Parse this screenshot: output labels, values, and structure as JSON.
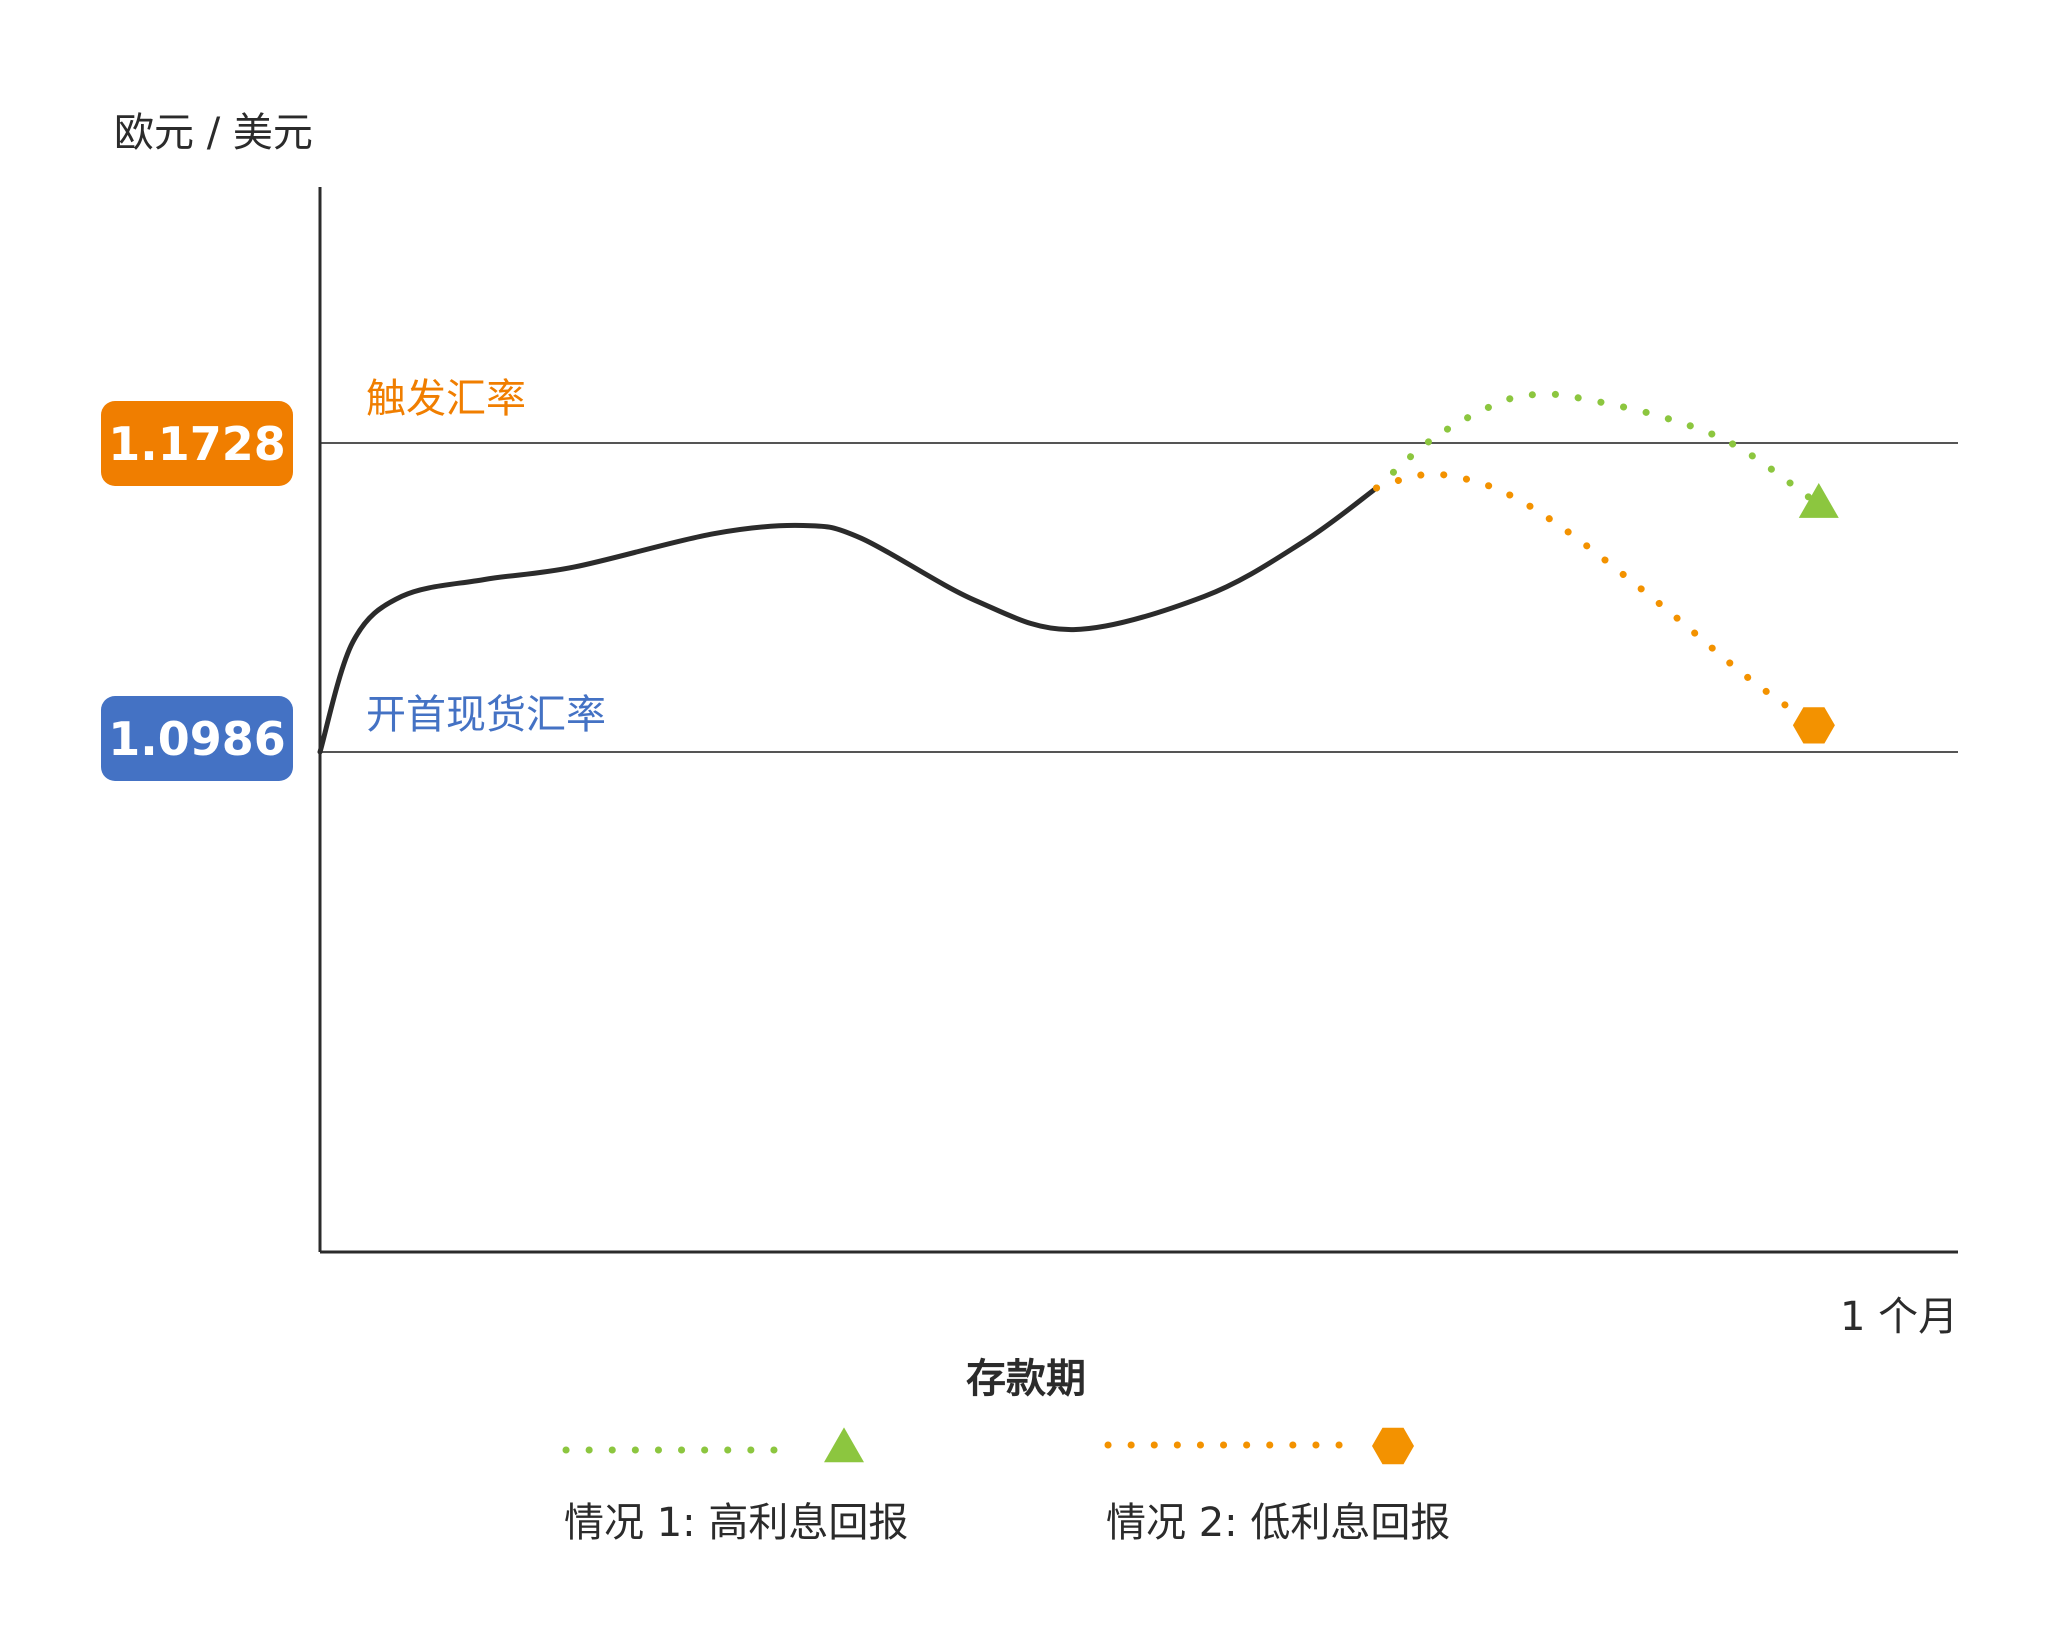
{
  "chart_data": {
    "type": "line",
    "y_axis_title": "欧元 / 美元",
    "x_axis_title": "存款期",
    "x_end_label": "1 个月",
    "reference_lines": [
      {
        "key": "trigger",
        "label": "触发汇率",
        "value": 1.1728,
        "value_label": "1.1728",
        "color": "#f07e00"
      },
      {
        "key": "spot",
        "label": "开首现货汇率",
        "value": 1.0986,
        "value_label": "1.0986",
        "color": "#4472c4"
      }
    ],
    "series": [
      {
        "key": "actual",
        "style": "solid",
        "color": "#2b2b2b",
        "points": [
          [
            0.0,
            1.0986
          ],
          [
            0.02,
            1.125
          ],
          [
            0.05,
            1.136
          ],
          [
            0.1,
            1.14
          ],
          [
            0.155,
            1.143
          ],
          [
            0.24,
            1.151
          ],
          [
            0.295,
            1.153
          ],
          [
            0.33,
            1.15
          ],
          [
            0.4,
            1.135
          ],
          [
            0.46,
            1.128
          ],
          [
            0.54,
            1.136
          ],
          [
            0.6,
            1.149
          ],
          [
            0.645,
            1.162
          ]
        ]
      },
      {
        "key": "scenario_1",
        "name": "情况 1: 高利息回报",
        "style": "dotted",
        "color": "#8cc63f",
        "marker": "triangle",
        "points": [
          [
            0.645,
            1.162
          ],
          [
            0.68,
            1.174
          ],
          [
            0.72,
            1.1825
          ],
          [
            0.745,
            1.1845
          ],
          [
            0.77,
            1.1835
          ],
          [
            0.82,
            1.179
          ],
          [
            0.865,
            1.172
          ],
          [
            0.915,
            1.158
          ]
        ]
      },
      {
        "key": "scenario_2",
        "name": "情况 2: 低利息回报",
        "style": "dotted",
        "color": "#f39200",
        "marker": "hexagon",
        "points": [
          [
            0.645,
            1.162
          ],
          [
            0.665,
            1.1645
          ],
          [
            0.685,
            1.1652
          ],
          [
            0.72,
            1.1615
          ],
          [
            0.76,
            1.152
          ],
          [
            0.82,
            1.1335
          ],
          [
            0.87,
            1.117
          ],
          [
            0.912,
            1.105
          ]
        ]
      }
    ],
    "x_range": [
      0,
      1
    ],
    "y_range": [
      0.98,
      1.23
    ],
    "grid": false,
    "legend_position": "bottom"
  }
}
